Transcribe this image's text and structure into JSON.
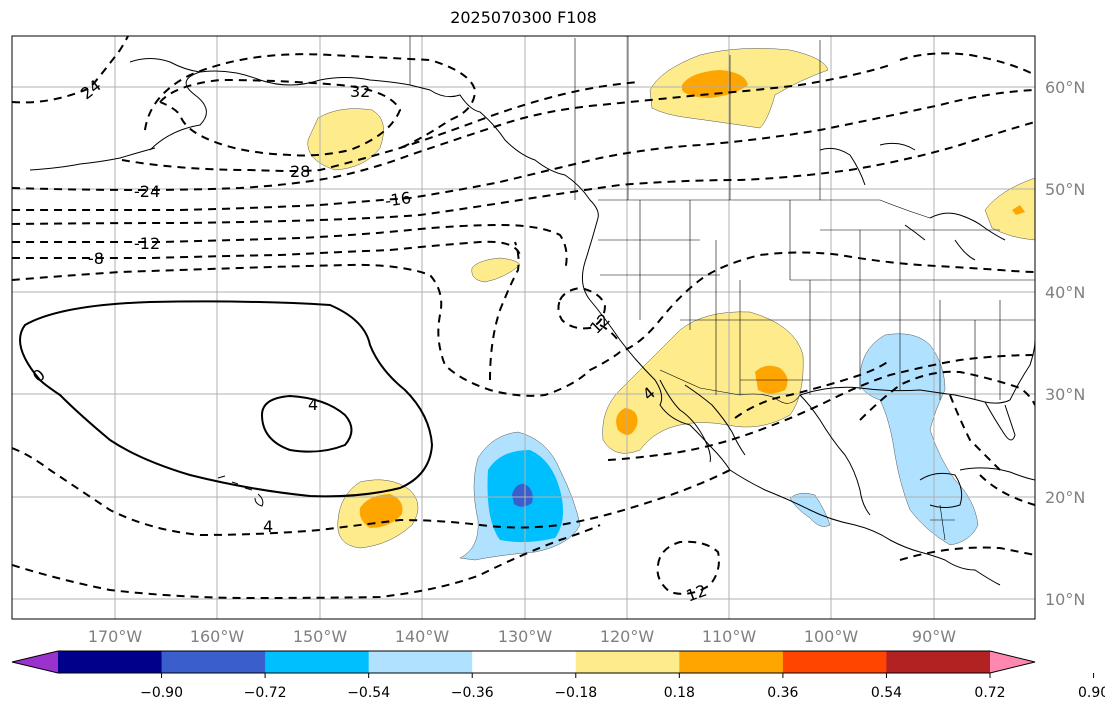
{
  "title": "2025070300 F108",
  "lon_labels": [
    "170°W",
    "160°W",
    "150°W",
    "140°W",
    "130°W",
    "120°W",
    "110°W",
    "100°W",
    "90°W"
  ],
  "lat_labels": [
    "60°N",
    "50°N",
    "40°N",
    "30°N",
    "20°N",
    "10°N"
  ],
  "colorbar": {
    "colors": [
      "#9a32cd",
      "#00008b",
      "#3a5fcd",
      "#00bfff",
      "#b0e2ff",
      "#ffffff",
      "#fdeb8c",
      "#ffa500",
      "#ff4500",
      "#b22222",
      "#ff88b0"
    ],
    "ticks": [
      "−0.90",
      "−0.72",
      "−0.54",
      "−0.36",
      "−0.18",
      "0.18",
      "0.36",
      "0.54",
      "0.72",
      "0.90"
    ]
  },
  "contour_labels": [
    "24",
    "32",
    "28",
    "-24",
    "-16",
    "-12",
    "-8",
    "0",
    "4",
    "4",
    "12",
    "4",
    "12"
  ],
  "fill_colors": {
    "light_yellow": "#fdeb8c",
    "orange": "#ffa500",
    "light_blue": "#b0e2ff",
    "blue": "#00bfff",
    "med_blue": "#3a5fcd"
  }
}
